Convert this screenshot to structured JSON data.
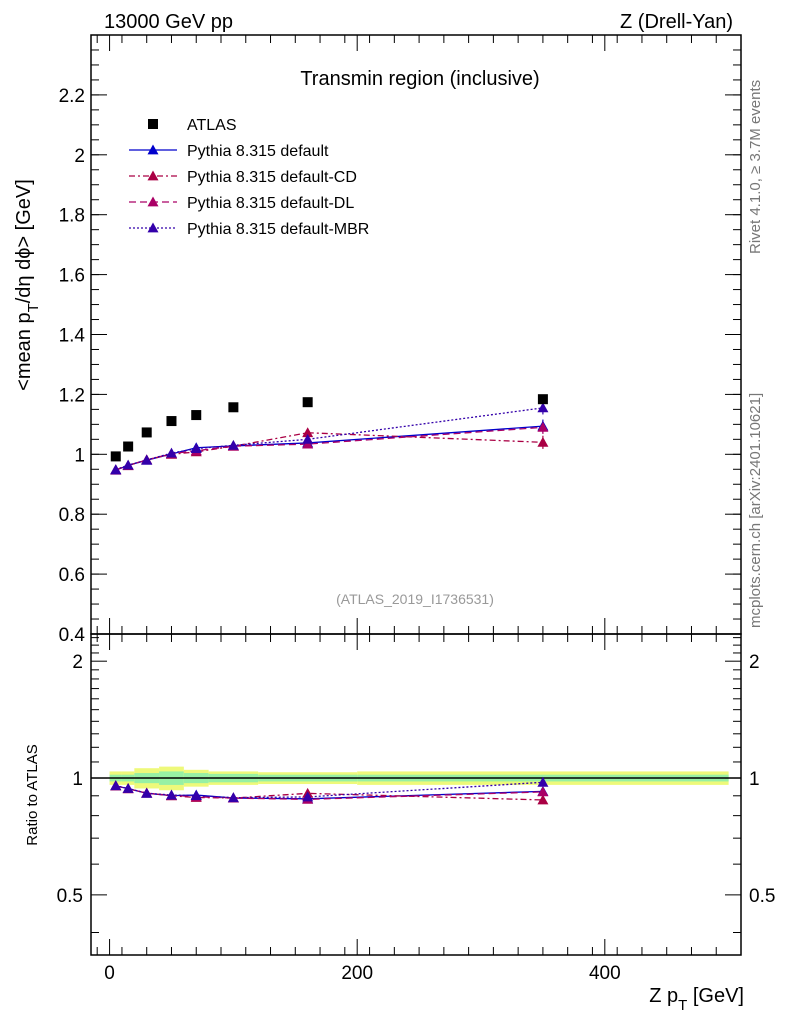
{
  "header": {
    "left": "13000 GeV pp",
    "right": "Z (Drell-Yan)"
  },
  "side_labels": {
    "rivet": "Rivet 4.1.0, ≥ 3.7M events",
    "mcplots": "mcplots.cern.ch [arXiv:2401.10621]"
  },
  "chart_data": {
    "type": "line",
    "title": "Transmin region (inclusive)",
    "analysis": "(ATLAS_2019_I1736531)",
    "xlabel_main": "Z p",
    "xlabel_sub": "T",
    "xlabel_unit": " [GeV]",
    "ylabel_main": "<mean p",
    "ylabel_sub": "T",
    "ylabel_rest": "/dη dϕ> [GeV]",
    "ratio_ylabel": "Ratio to ATLAS",
    "xlim": [
      -15,
      510
    ],
    "ylim": [
      0.4,
      2.4
    ],
    "ratio_ylim": [
      0.35,
      2.35
    ],
    "xticks": [
      0,
      200,
      400
    ],
    "yticks": [
      0.4,
      0.6,
      0.8,
      1,
      1.2,
      1.4,
      1.6,
      1.8,
      2,
      2.2
    ],
    "ytick_labels": [
      "0.4",
      "0.6",
      "0.8",
      "1",
      "1.2",
      "1.4",
      "1.6",
      "1.8",
      "2",
      "2.2"
    ],
    "ratio_yticks": [
      0.5,
      1,
      2
    ],
    "ratio_ytick_labels": [
      "0.5",
      "1",
      "2"
    ],
    "x": [
      5,
      15,
      30,
      50,
      70,
      100,
      160,
      350
    ],
    "data": {
      "name": "ATLAS",
      "values": [
        0.993,
        1.026,
        1.073,
        1.111,
        1.131,
        1.157,
        1.174,
        1.184
      ],
      "band_edges": [
        0,
        10,
        20,
        40,
        60,
        80,
        120,
        200,
        500
      ],
      "band_inner": [
        0.02,
        0.02,
        0.03,
        0.04,
        0.03,
        0.025,
        0.02,
        0.02
      ],
      "band_outer": [
        0.04,
        0.04,
        0.06,
        0.07,
        0.05,
        0.04,
        0.035,
        0.04
      ]
    },
    "series": [
      {
        "name": "Pythia 8.315 default",
        "color": "#0000cc",
        "dash": "",
        "values": [
          0.947,
          0.963,
          0.98,
          1.001,
          1.022,
          1.028,
          1.038,
          1.094
        ],
        "ratio": [
          0.954,
          0.939,
          0.913,
          0.901,
          0.904,
          0.888,
          0.884,
          0.924
        ]
      },
      {
        "name": "Pythia 8.315 default-CD",
        "color": "#aa0044",
        "dash": "6 3 2 3",
        "values": [
          0.948,
          0.962,
          0.982,
          1.0,
          1.008,
          1.027,
          1.072,
          1.04
        ],
        "ratio": [
          0.955,
          0.938,
          0.915,
          0.9,
          0.891,
          0.888,
          0.913,
          0.878
        ]
      },
      {
        "name": "Pythia 8.315 default-DL",
        "color": "#aa0066",
        "dash": "7 4",
        "values": [
          0.948,
          0.963,
          0.981,
          1.002,
          1.012,
          1.027,
          1.034,
          1.09
        ],
        "ratio": [
          0.955,
          0.939,
          0.914,
          0.902,
          0.895,
          0.888,
          0.881,
          0.921
        ]
      },
      {
        "name": "Pythia 8.315 default-MBR",
        "color": "#3300aa",
        "dash": "2 2",
        "values": [
          0.949,
          0.964,
          0.981,
          1.004,
          1.019,
          1.03,
          1.05,
          1.155
        ],
        "ratio": [
          0.956,
          0.94,
          0.914,
          0.904,
          0.901,
          0.89,
          0.894,
          0.975
        ]
      }
    ]
  }
}
